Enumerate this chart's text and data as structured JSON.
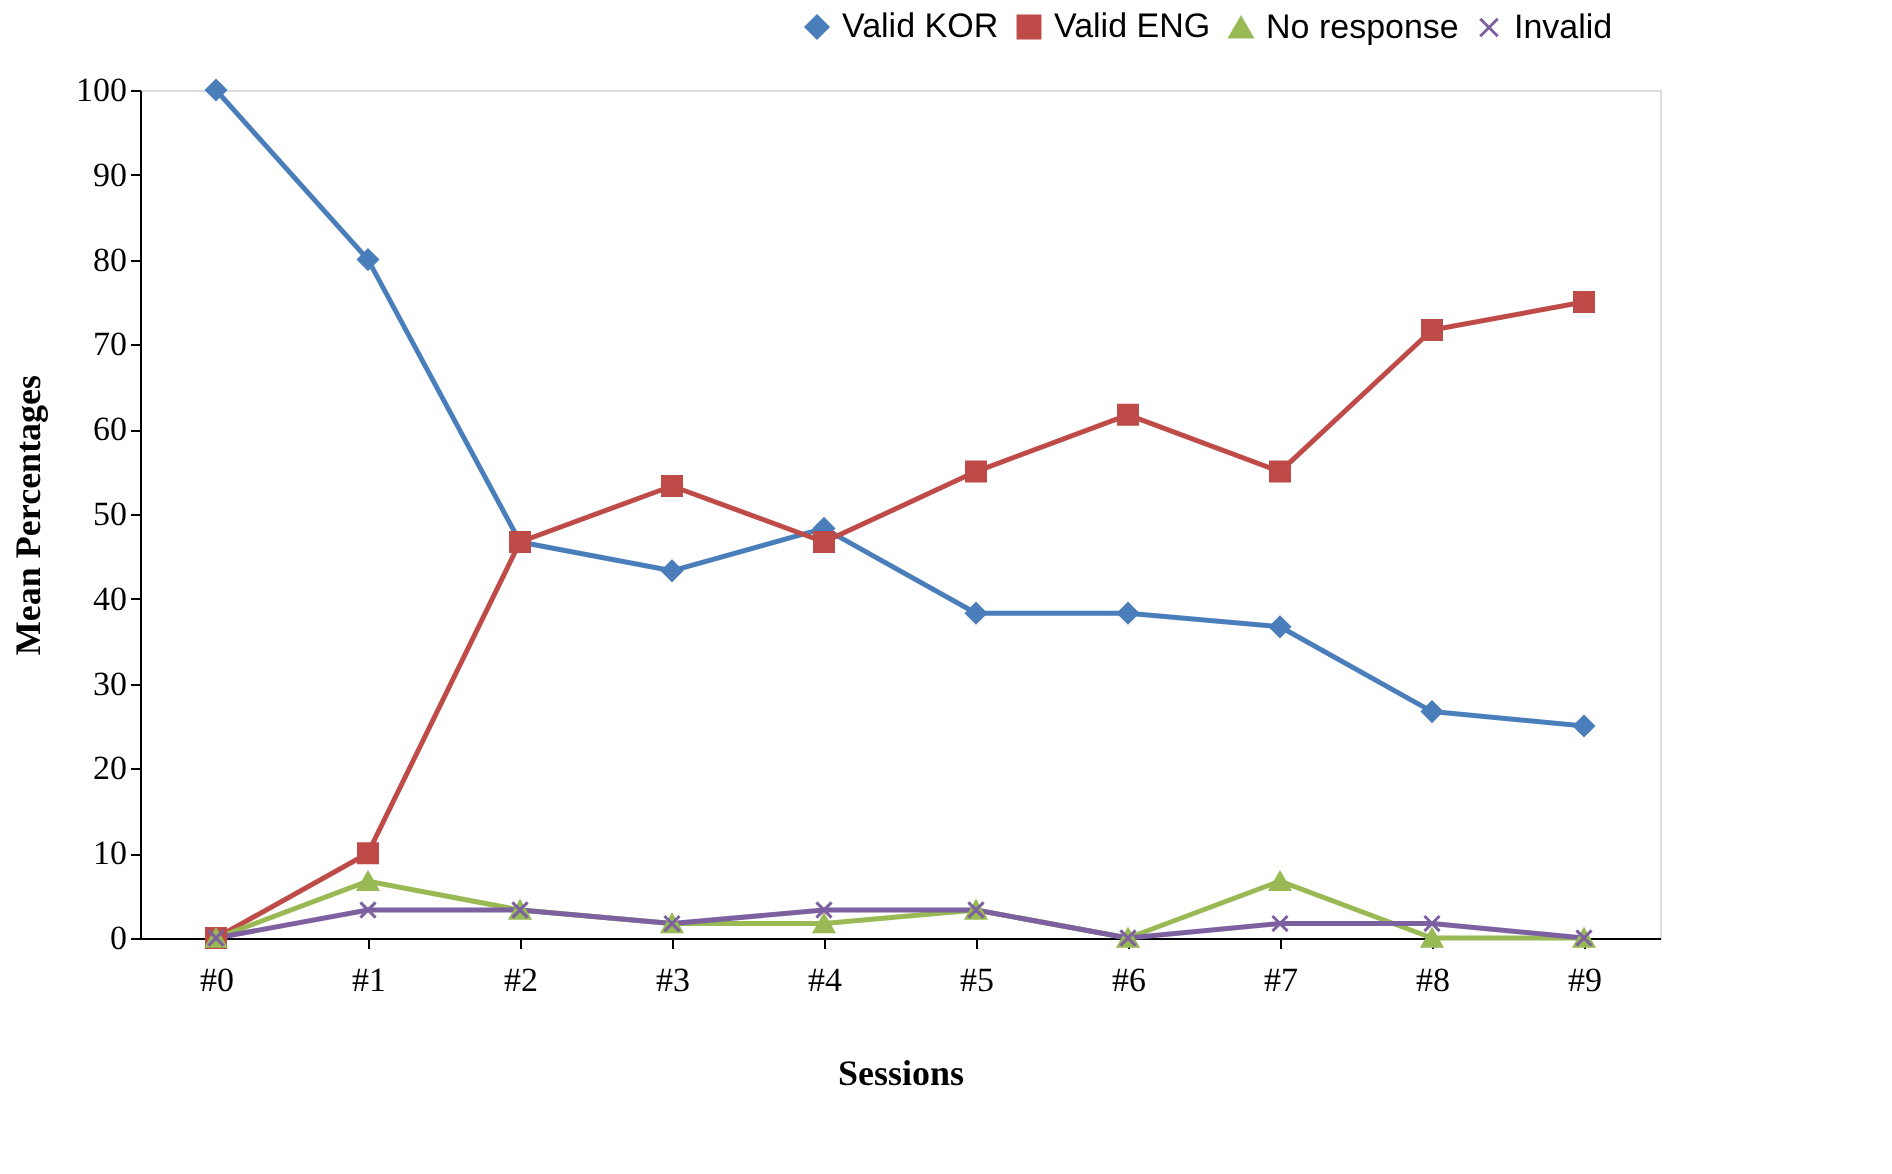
{
  "chart_data": {
    "type": "line",
    "xlabel": "Sessions",
    "ylabel": "Mean Percentages",
    "categories": [
      "#0",
      "#1",
      "#2",
      "#3",
      "#4",
      "#5",
      "#6",
      "#7",
      "#8",
      "#9"
    ],
    "series": [
      {
        "name": "Valid KOR",
        "color": "#4a7ebb",
        "marker": "diamond",
        "values": [
          100,
          80,
          46.7,
          43.3,
          48.3,
          38.3,
          38.3,
          36.7,
          26.7,
          25
        ]
      },
      {
        "name": "Valid ENG",
        "color": "#be4b48",
        "marker": "square",
        "values": [
          0,
          10,
          46.7,
          53.3,
          46.7,
          55,
          61.7,
          55,
          71.7,
          75
        ]
      },
      {
        "name": "No response",
        "color": "#98b954",
        "marker": "triangle",
        "values": [
          0,
          6.7,
          3.3,
          1.7,
          1.7,
          3.3,
          0,
          6.7,
          0,
          0
        ]
      },
      {
        "name": "Invalid",
        "color": "#7d60a0",
        "marker": "cross",
        "values": [
          0,
          3.3,
          3.3,
          1.7,
          3.3,
          3.3,
          0,
          1.7,
          1.7,
          0
        ]
      }
    ],
    "ylim": [
      0,
      100
    ],
    "yticks": [
      0,
      10,
      20,
      30,
      40,
      50,
      60,
      70,
      80,
      90,
      100
    ],
    "grid": false,
    "legend": "top right",
    "line_style": "solid"
  }
}
